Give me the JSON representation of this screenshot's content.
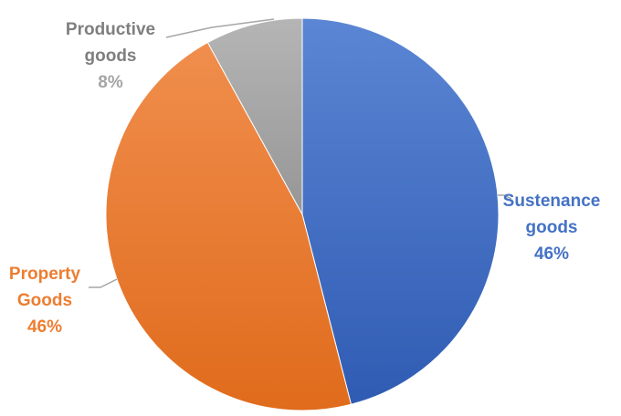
{
  "chart_data": {
    "type": "pie",
    "start_angle_deg": 0,
    "direction": "clockwise",
    "slices": [
      {
        "name_lines": [
          "Sustenance",
          "goods"
        ],
        "value": 46,
        "percent_label": "46%",
        "color": "#4472c4",
        "color_light": "#5b86d4",
        "color_dark": "#2f5bb3",
        "label_color": "#4472c4",
        "key": "sustenance"
      },
      {
        "name_lines": [
          "Property",
          "Goods"
        ],
        "value": 46,
        "percent_label": "46%",
        "color": "#ed7d31",
        "color_light": "#f08e4d",
        "color_dark": "#e06b1c",
        "label_color": "#ed7d31",
        "key": "property"
      },
      {
        "name_lines": [
          "Productive",
          "goods"
        ],
        "value": 8,
        "percent_label": "8%",
        "color": "#a5a5a5",
        "color_light": "#b5b5b5",
        "color_dark": "#969696",
        "label_color_name": "#7f7f7f",
        "label_color": "#a5a5a5",
        "key": "productive"
      }
    ]
  }
}
